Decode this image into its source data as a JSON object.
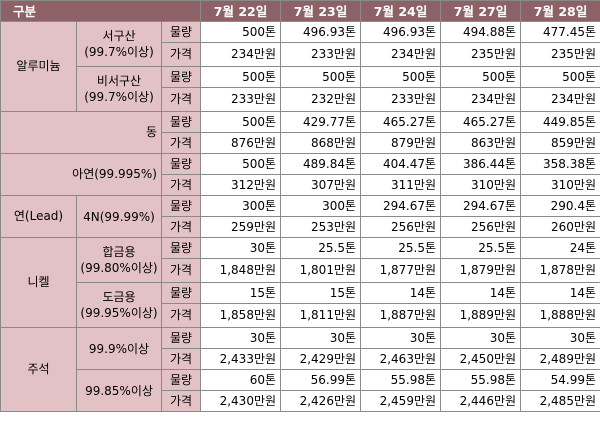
{
  "header": {
    "corner": "구분",
    "dates": [
      "7월 22일",
      "7월 23일",
      "7월 24일",
      "7월 27일",
      "7월 28일"
    ]
  },
  "labels": {
    "volume": "물량",
    "price": "가격"
  },
  "groups": {
    "aluminum": {
      "name": "알루미늄",
      "western": {
        "name": "서구산\n(99.7%이상)",
        "volume": [
          "500톤",
          "496.93톤",
          "496.93톤",
          "494.88톤",
          "477.45톤"
        ],
        "price": [
          "234만원",
          "233만원",
          "234만원",
          "235만원",
          "235만원"
        ]
      },
      "nonwestern": {
        "name": "비서구산\n(99.7%이상)",
        "volume": [
          "500톤",
          "500톤",
          "500톤",
          "500톤",
          "500톤"
        ],
        "price": [
          "233만원",
          "232만원",
          "233만원",
          "234만원",
          "234만원"
        ]
      }
    },
    "copper": {
      "name": "동",
      "volume": [
        "500톤",
        "429.77톤",
        "465.27톤",
        "465.27톤",
        "449.85톤"
      ],
      "price": [
        "876만원",
        "868만원",
        "879만원",
        "863만원",
        "859만원"
      ]
    },
    "zinc": {
      "name": "아연(99.995%)",
      "volume": [
        "500톤",
        "489.84톤",
        "404.47톤",
        "386.44톤",
        "358.38톤"
      ],
      "price": [
        "312만원",
        "307만원",
        "311만원",
        "310만원",
        "310만원"
      ]
    },
    "lead": {
      "name": "연(Lead)",
      "sub": "4N(99.99%)",
      "volume": [
        "300톤",
        "300톤",
        "294.67톤",
        "294.67톤",
        "290.4톤"
      ],
      "price": [
        "259만원",
        "253만원",
        "256만원",
        "256만원",
        "260만원"
      ]
    },
    "nickel": {
      "name": "니켈",
      "alloy": {
        "name": "합금용\n(99.80%이상)",
        "volume": [
          "30톤",
          "25.5톤",
          "25.5톤",
          "25.5톤",
          "24톤"
        ],
        "price": [
          "1,848만원",
          "1,801만원",
          "1,877만원",
          "1,879만원",
          "1,878만원"
        ]
      },
      "plating": {
        "name": "도금용\n(99.95%이상)",
        "volume": [
          "15톤",
          "15톤",
          "14톤",
          "14톤",
          "14톤"
        ],
        "price": [
          "1,858만원",
          "1,811만원",
          "1,887만원",
          "1,889만원",
          "1,888만원"
        ]
      }
    },
    "tin": {
      "name": "주석",
      "grade1": {
        "name": "99.9%이상",
        "volume": [
          "30톤",
          "30톤",
          "30톤",
          "30톤",
          "30톤"
        ],
        "price": [
          "2,433만원",
          "2,429만원",
          "2,463만원",
          "2,450만원",
          "2,489만원"
        ]
      },
      "grade2": {
        "name": "99.85%이상",
        "volume": [
          "60톤",
          "56.99톤",
          "55.98톤",
          "55.98톤",
          "54.99톤"
        ],
        "price": [
          "2,430만원",
          "2,426만원",
          "2,459만원",
          "2,446만원",
          "2,485만원"
        ]
      }
    }
  }
}
